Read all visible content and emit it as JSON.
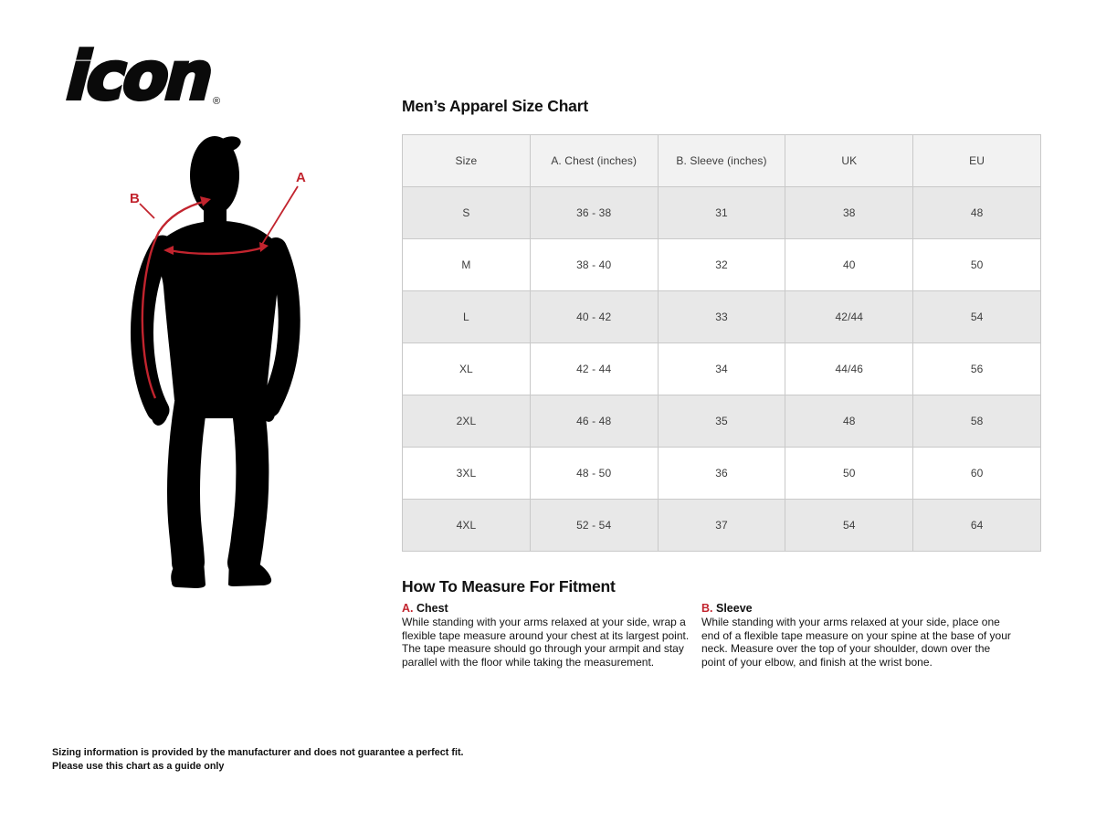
{
  "brand": {
    "logo_text": "icon",
    "registered_mark": "®"
  },
  "figure": {
    "label_a": "A",
    "label_b": "B"
  },
  "size_chart": {
    "title": "Men’s Apparel Size Chart",
    "columns": [
      "Size",
      "A. Chest (inches)",
      "B. Sleeve (inches)",
      "UK",
      "EU"
    ],
    "rows": [
      [
        "S",
        "36 - 38",
        "31",
        "38",
        "48"
      ],
      [
        "M",
        "38 - 40",
        "32",
        "40",
        "50"
      ],
      [
        "L",
        "40 - 42",
        "33",
        "42/44",
        "54"
      ],
      [
        "XL",
        "42 - 44",
        "34",
        "44/46",
        "56"
      ],
      [
        "2XL",
        "46 - 48",
        "35",
        "48",
        "58"
      ],
      [
        "3XL",
        "48 - 50",
        "36",
        "50",
        "60"
      ],
      [
        "4XL",
        "52 - 54",
        "37",
        "54",
        "64"
      ]
    ]
  },
  "how_to_measure": {
    "title": "How To Measure For Fitment",
    "sections": [
      {
        "letter": "A.",
        "name": "Chest",
        "text": "While standing with your arms relaxed at your side, wrap a flexible tape measure around your chest at its largest point. The tape measure should go through your armpit and stay parallel with the floor while taking the measurement."
      },
      {
        "letter": "B.",
        "name": "Sleeve",
        "text": "While standing with your arms relaxed at your side, place one end of a flexible tape measure on your spine at the base of your neck. Measure over the top of your shoulder, down over the point of your elbow, and finish at the wrist bone."
      }
    ]
  },
  "footer": {
    "line1": "Sizing information is provided by the manufacturer and does not guarantee a perfect fit.",
    "line2": "Please use this chart as a guide only"
  },
  "colors": {
    "accent_red": "#c2242e",
    "silhouette_black": "#000000",
    "table_header_bg": "#f2f2f2",
    "table_row_alt_bg": "#e8e8e8",
    "table_border": "#c9c9c9",
    "text": "#111111"
  }
}
